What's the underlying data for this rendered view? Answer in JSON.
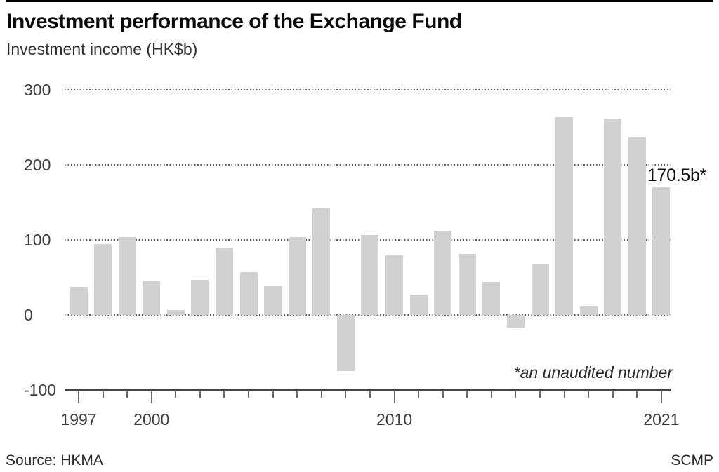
{
  "title": "Investment performance of the Exchange Fund",
  "subtitle": "Investment income (HK$b)",
  "annotation": "170.5b*",
  "footnote": "*an unaudited number",
  "source": "Source: HKMA",
  "credit": "SCMP",
  "colors": {
    "bar": "#d1d1d1",
    "axis": "#474747",
    "grid_dots": "#5d5d5d",
    "tick": "#6a6a6a",
    "title_text": "#0a0a0a",
    "label_text": "#3c3c3c",
    "top_rule": "#000000"
  },
  "chart_data": {
    "type": "bar",
    "title": "Investment performance of the Exchange Fund",
    "xlabel": "",
    "ylabel": "Investment income (HK$b)",
    "categories": [
      1997,
      1998,
      1999,
      2000,
      2001,
      2002,
      2003,
      2004,
      2005,
      2006,
      2007,
      2008,
      2009,
      2010,
      2011,
      2012,
      2013,
      2014,
      2015,
      2016,
      2017,
      2018,
      2019,
      2020,
      2021
    ],
    "values": [
      37,
      94,
      104,
      45,
      7,
      47,
      90,
      57,
      38,
      104,
      142,
      -75,
      107,
      79,
      27,
      112,
      81,
      44,
      -17,
      68,
      264,
      11,
      262,
      236,
      170.5
    ],
    "ylim": [
      -100,
      300
    ],
    "y_ticks": [
      300,
      200,
      100,
      0,
      -100
    ],
    "x_tick_labels": [
      1997,
      2000,
      2010,
      2021
    ],
    "grid": "horizontal dotted",
    "legend": "none",
    "annotation": {
      "year": 2021,
      "label": "170.5b*",
      "note": "*an unaudited number"
    }
  }
}
